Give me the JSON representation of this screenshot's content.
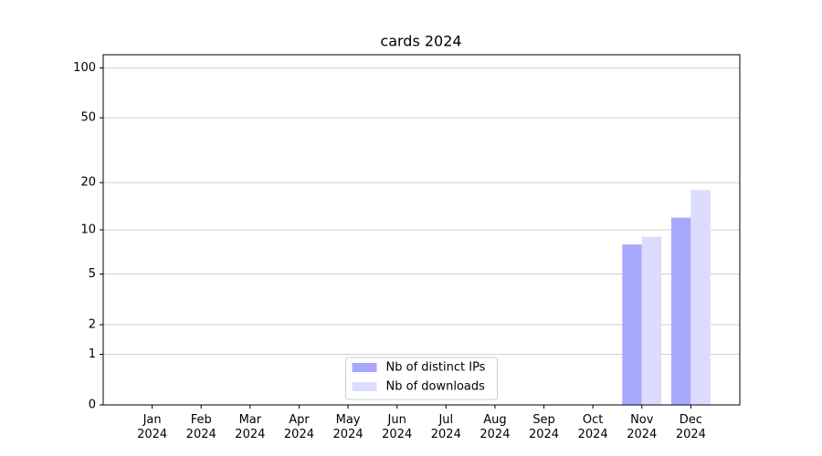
{
  "chart_data": {
    "type": "bar",
    "title": "cards 2024",
    "categories": [
      "Jan\n2024",
      "Feb\n2024",
      "Mar\n2024",
      "Apr\n2024",
      "May\n2024",
      "Jun\n2024",
      "Jul\n2024",
      "Aug\n2024",
      "Sep\n2024",
      "Oct\n2024",
      "Nov\n2024",
      "Dec\n2024"
    ],
    "series": [
      {
        "name": "Nb of distinct IPs",
        "color": "#a8a8ff",
        "values": [
          0,
          0,
          0,
          0,
          0,
          0,
          0,
          0,
          0,
          0,
          8,
          12
        ]
      },
      {
        "name": "Nb of downloads",
        "color": "#dcdcff",
        "values": [
          0,
          0,
          0,
          0,
          0,
          0,
          0,
          0,
          0,
          0,
          9,
          18
        ]
      }
    ],
    "yscale": "log1p",
    "ylim": [
      0,
      120
    ],
    "yticks": [
      0,
      1,
      2,
      5,
      10,
      20,
      50,
      100
    ],
    "grid": true,
    "legend": "lower center"
  }
}
